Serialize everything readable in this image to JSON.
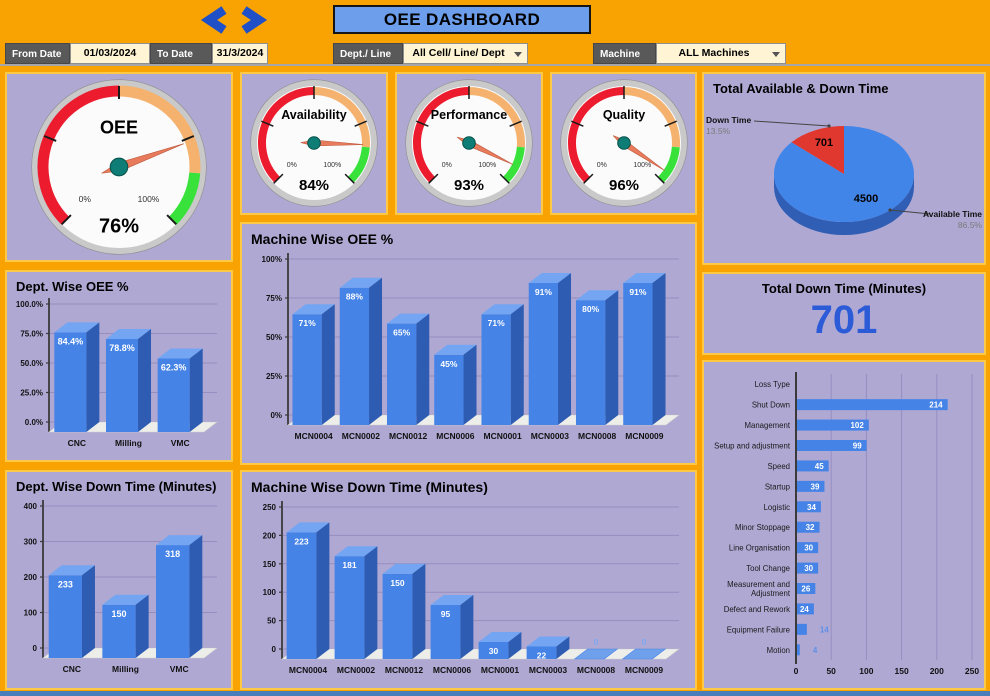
{
  "header": {
    "title": "OEE DASHBOARD"
  },
  "filters": {
    "from_date": {
      "label": "From Date",
      "value": "01/03/2024"
    },
    "to_date": {
      "label": "To Date",
      "value": "31/3/2024"
    },
    "dept_line": {
      "label": "Dept./ Line",
      "value": "All Cell/ Line/ Dept"
    },
    "machine": {
      "label": "Machine",
      "value": "ALL Machines"
    }
  },
  "gauges": [
    {
      "name": "OEE",
      "value": 76,
      "display": "76%",
      "min_label": "0%",
      "max_label": "100%"
    },
    {
      "name": "Availability",
      "value": 84,
      "display": "84%",
      "min_label": "0%",
      "max_label": "100%"
    },
    {
      "name": "Performance",
      "value": 93,
      "display": "93%",
      "min_label": "0%",
      "max_label": "100%"
    },
    {
      "name": "Quality",
      "value": 96,
      "display": "96%",
      "min_label": "0%",
      "max_label": "100%"
    }
  ],
  "totals": {
    "down_time_title": "Total Down Time (Minutes)",
    "down_time_value": "701"
  },
  "theme": {
    "background": "#F9A303",
    "panel": "#AFA8D3",
    "panel_border": "#FFC845",
    "bar_front": "#4583E6",
    "bar_top": "#74A5F2",
    "bar_side": "#2E5CB2",
    "accent_blue": "#2B5BD7",
    "gauge_segments": [
      {
        "from": 0,
        "to": 0.5,
        "color": "#EC1C2E"
      },
      {
        "from": 0.5,
        "to": 0.85,
        "color": "#F5B26E"
      },
      {
        "from": 0.85,
        "to": 1,
        "color": "#38E23B"
      }
    ],
    "needle": "#E87B5C",
    "hub": "#0D7D75"
  },
  "chart_data": [
    {
      "id": "available_down_pie",
      "type": "pie",
      "title": "Total Available & Down Time",
      "slices": [
        {
          "label": "Available Time",
          "value": 4500,
          "percent": "86.5%",
          "color": "#4285E8"
        },
        {
          "label": "Down Time",
          "value": 701,
          "percent": "13.5%",
          "color": "#E0382E"
        }
      ]
    },
    {
      "id": "dept_oee",
      "type": "bar",
      "title": "Dept. Wise OEE %",
      "categories": [
        "CNC",
        "Milling",
        "VMC"
      ],
      "values": [
        84.4,
        78.8,
        62.3
      ],
      "value_labels": [
        "84.4%",
        "78.8%",
        "62.3%"
      ],
      "ylim": [
        0,
        100
      ],
      "yticks": [
        {
          "v": 0,
          "label": "0.0%"
        },
        {
          "v": 25,
          "label": "25.0%"
        },
        {
          "v": 50,
          "label": "50.0%"
        },
        {
          "v": 75,
          "label": "75.0%"
        },
        {
          "v": 100,
          "label": "100.0%"
        }
      ]
    },
    {
      "id": "machine_oee",
      "type": "bar",
      "title": "Machine Wise OEE %",
      "categories": [
        "MCN0004",
        "MCN0002",
        "MCN0012",
        "MCN0006",
        "MCN0001",
        "MCN0003",
        "MCN0008",
        "MCN0009"
      ],
      "values": [
        71,
        88,
        65,
        45,
        71,
        91,
        80,
        91
      ],
      "value_labels": [
        "71%",
        "88%",
        "65%",
        "45%",
        "71%",
        "91%",
        "80%",
        "91%"
      ],
      "ylim": [
        0,
        100
      ],
      "yticks": [
        {
          "v": 0,
          "label": "0%"
        },
        {
          "v": 25,
          "label": "25%"
        },
        {
          "v": 50,
          "label": "50%"
        },
        {
          "v": 75,
          "label": "75%"
        },
        {
          "v": 100,
          "label": "100%"
        }
      ]
    },
    {
      "id": "dept_down",
      "type": "bar",
      "title": "Dept. Wise Down Time (Minutes)",
      "categories": [
        "CNC",
        "Milling",
        "VMC"
      ],
      "values": [
        233,
        150,
        318
      ],
      "value_labels": [
        "233",
        "150",
        "318"
      ],
      "ylim": [
        0,
        400
      ],
      "yticks": [
        {
          "v": 0,
          "label": "0"
        },
        {
          "v": 100,
          "label": "100"
        },
        {
          "v": 200,
          "label": "200"
        },
        {
          "v": 300,
          "label": "300"
        },
        {
          "v": 400,
          "label": "400"
        }
      ]
    },
    {
      "id": "machine_down",
      "type": "bar",
      "title": "Machine Wise Down Time (Minutes)",
      "categories": [
        "MCN0004",
        "MCN0002",
        "MCN0012",
        "MCN0006",
        "MCN0001",
        "MCN0003",
        "MCN0008",
        "MCN0009"
      ],
      "values": [
        223,
        181,
        150,
        95,
        30,
        22,
        0,
        0
      ],
      "value_labels": [
        "223",
        "181",
        "150",
        "95",
        "30",
        "22",
        "0",
        "0"
      ],
      "ylim": [
        0,
        250
      ],
      "yticks": [
        {
          "v": 0,
          "label": "0"
        },
        {
          "v": 50,
          "label": "50"
        },
        {
          "v": 100,
          "label": "100"
        },
        {
          "v": 150,
          "label": "150"
        },
        {
          "v": 200,
          "label": "200"
        },
        {
          "v": 250,
          "label": "250"
        }
      ]
    },
    {
      "id": "loss_type",
      "type": "hbar",
      "title": "",
      "categories": [
        "Loss Type",
        "Shut Down",
        "Management",
        "Setup and adjustment",
        "Speed",
        "Startup",
        "Logistic",
        "Minor Stoppage",
        "Line Organisation",
        "Tool Change",
        "Measurement and\nAdjustment",
        "Defect and Rework",
        "Equipment Failure",
        "Motion"
      ],
      "values": [
        null,
        214,
        102,
        99,
        45,
        39,
        34,
        32,
        30,
        30,
        26,
        24,
        14,
        4
      ],
      "value_labels": [
        null,
        "214",
        "102",
        "99",
        "45",
        "39",
        "34",
        "32",
        "30",
        "30",
        "26",
        "24",
        "14",
        "4"
      ],
      "xlim": [
        0,
        250
      ],
      "xticks": [
        0,
        50,
        100,
        150,
        200,
        250
      ]
    }
  ]
}
